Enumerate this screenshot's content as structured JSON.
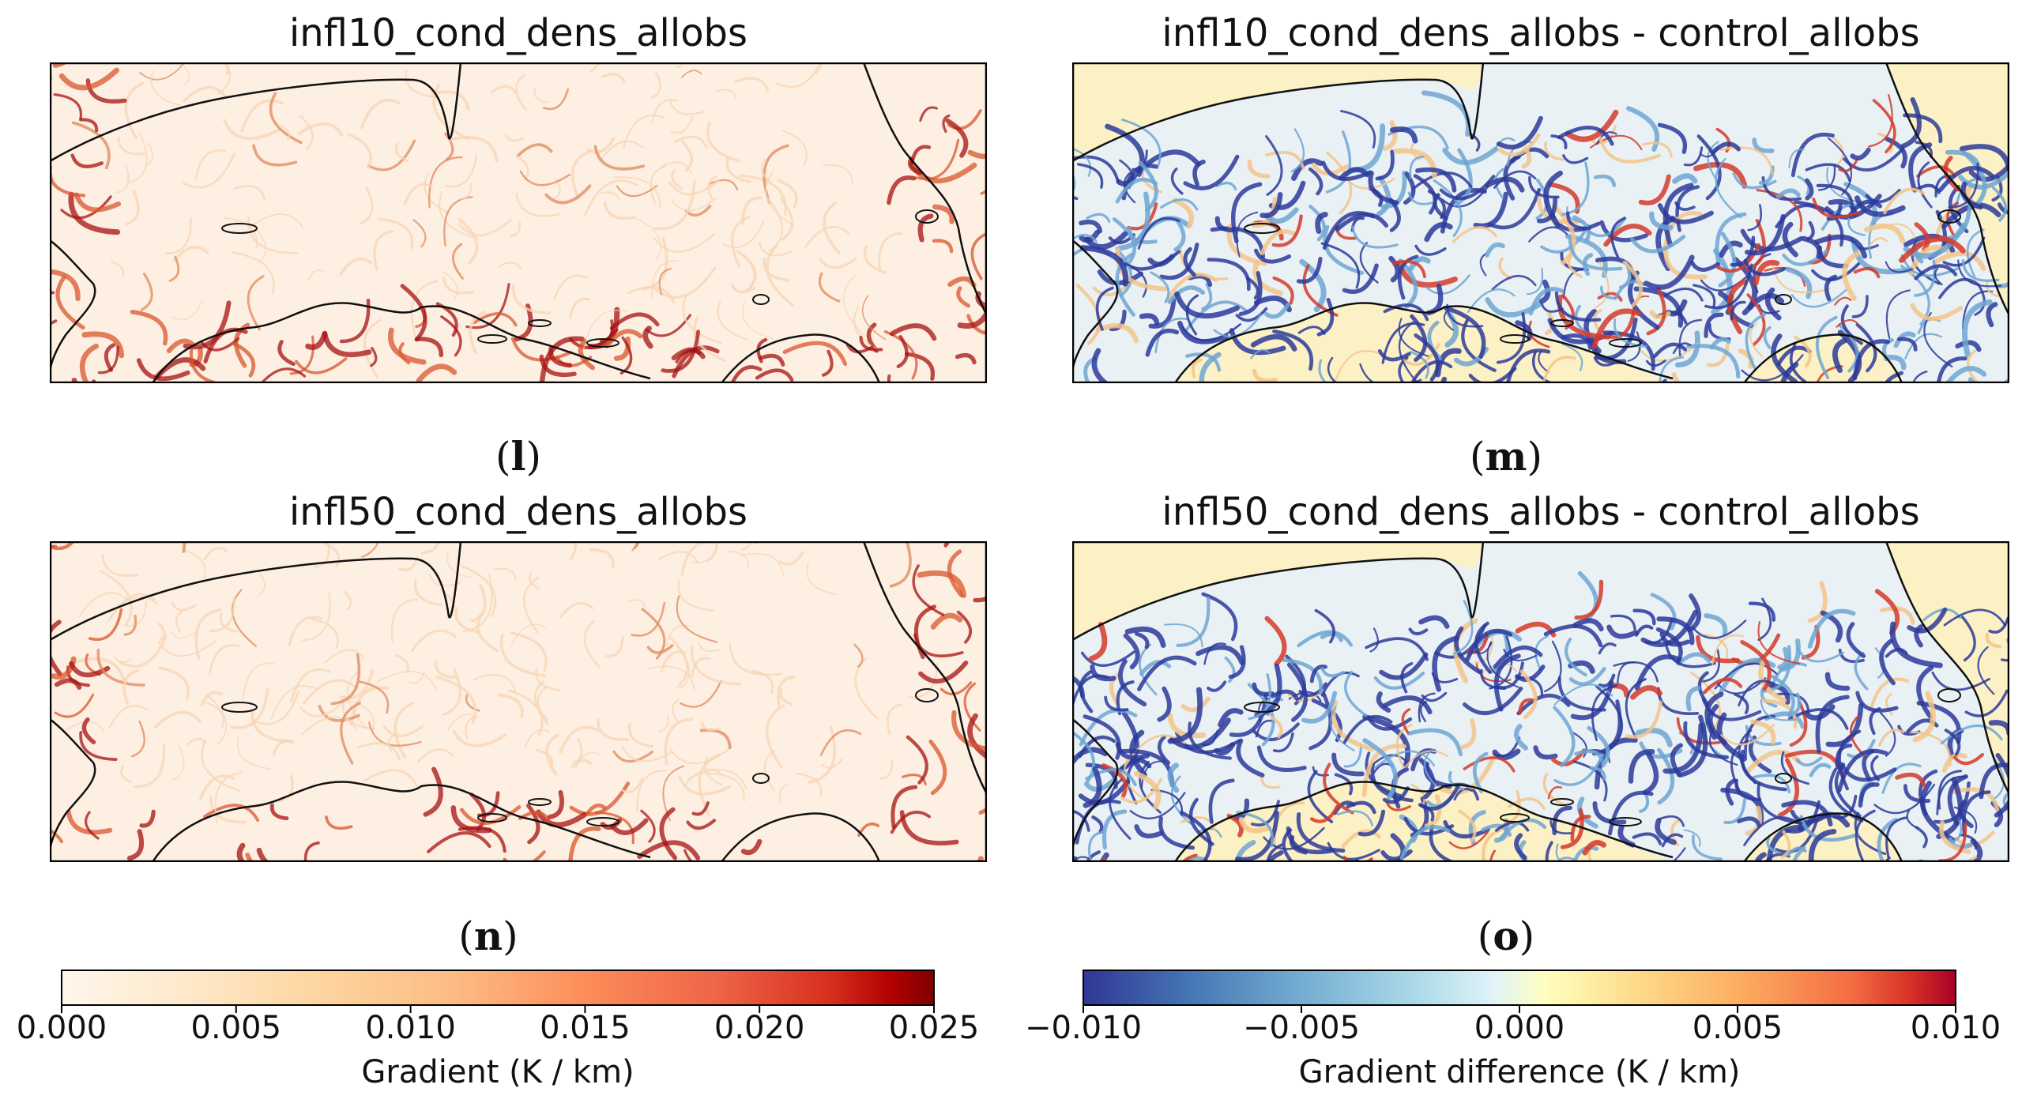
{
  "panels": [
    {
      "title": "infl10_cond_dens_allobs",
      "label": "l",
      "kind": "gradient",
      "seed": 11
    },
    {
      "title": "infl10_cond_dens_allobs - control_allobs",
      "label": "m",
      "kind": "difference",
      "seed": 23
    },
    {
      "title": "infl50_cond_dens_allobs",
      "label": "n",
      "kind": "gradient",
      "seed": 37
    },
    {
      "title": "infl50_cond_dens_allobs - control_allobs",
      "label": "o",
      "kind": "difference",
      "seed": 51
    }
  ],
  "chart_data": [
    {
      "type": "heatmap",
      "title": "infl10_cond_dens_allobs",
      "panel_label": "(l)",
      "colorbar": {
        "label": "Gradient (K / km)",
        "range": [
          0.0,
          0.025
        ],
        "ticks": [
          "0.000",
          "0.005",
          "0.010",
          "0.015",
          "0.020",
          "0.025"
        ],
        "colormap": "OrRd"
      }
    },
    {
      "type": "heatmap",
      "title": "infl10_cond_dens_allobs - control_allobs",
      "panel_label": "(m)",
      "colorbar": {
        "label": "Gradient difference (K / km)",
        "range": [
          -0.01,
          0.01
        ],
        "ticks": [
          "−0.010",
          "−0.005",
          "0.000",
          "0.005",
          "0.010"
        ],
        "colormap": "RdYlBu_r"
      }
    },
    {
      "type": "heatmap",
      "title": "infl50_cond_dens_allobs",
      "panel_label": "(n)",
      "colorbar": {
        "label": "Gradient (K / km)",
        "range": [
          0.0,
          0.025
        ],
        "ticks": [
          "0.000",
          "0.005",
          "0.010",
          "0.015",
          "0.020",
          "0.025"
        ],
        "colormap": "OrRd"
      }
    },
    {
      "type": "heatmap",
      "title": "infl50_cond_dens_allobs - control_allobs",
      "panel_label": "(o)",
      "colorbar": {
        "label": "Gradient difference (K / km)",
        "range": [
          -0.01,
          0.01
        ],
        "ticks": [
          "−0.010",
          "−0.005",
          "0.000",
          "0.005",
          "0.010"
        ],
        "colormap": "RdYlBu_r"
      }
    }
  ],
  "colorbars": {
    "gradient": {
      "label": "Gradient (K / km)",
      "ticks": [
        "0.000",
        "0.005",
        "0.010",
        "0.015",
        "0.020",
        "0.025"
      ]
    },
    "difference": {
      "label": "Gradient difference (K / km)",
      "ticks": [
        "−0.010",
        "−0.005",
        "0.000",
        "0.005",
        "0.010"
      ]
    }
  }
}
